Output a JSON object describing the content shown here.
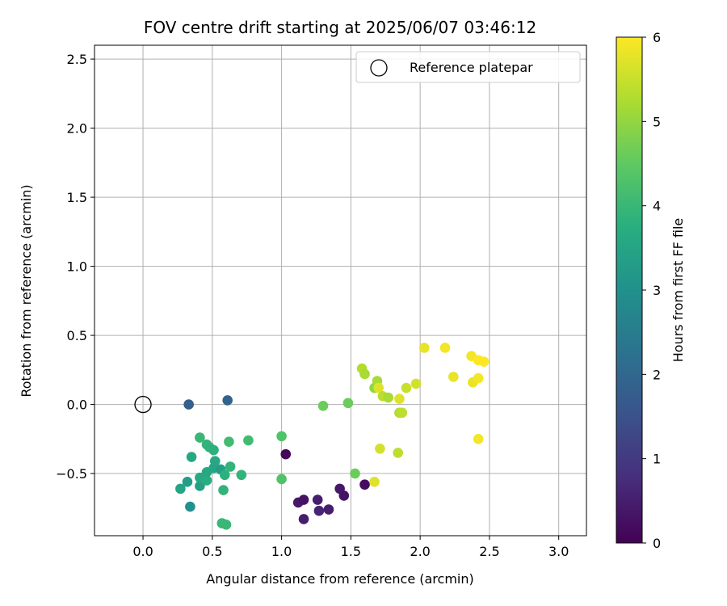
{
  "chart_data": {
    "type": "scatter",
    "title": "FOV centre drift starting at 2025/06/07 03:46:12",
    "xlabel": "Angular distance from reference (arcmin)",
    "ylabel": "Rotation from reference (arcmin)",
    "xlim": [
      -0.35,
      3.2
    ],
    "ylim": [
      -0.95,
      2.6
    ],
    "xticks": [
      0.0,
      0.5,
      1.0,
      1.5,
      2.0,
      2.5,
      3.0
    ],
    "xtick_labels": [
      "0.0",
      "0.5",
      "1.0",
      "1.5",
      "2.0",
      "2.5",
      "3.0"
    ],
    "yticks": [
      -0.5,
      0.0,
      0.5,
      1.0,
      1.5,
      2.0,
      2.5
    ],
    "ytick_labels": [
      "−0.5",
      "0.0",
      "0.5",
      "1.0",
      "1.5",
      "2.0",
      "2.5"
    ],
    "grid": true,
    "legend": {
      "position": "top-right",
      "entries": [
        "Reference platepar"
      ]
    },
    "reference": {
      "x": 0.0,
      "y": 0.0,
      "label": "Reference platepar"
    },
    "colorbar": {
      "label": "Hours from first FF file",
      "range": [
        0,
        6
      ],
      "ticks": [
        0,
        1,
        2,
        3,
        4,
        5,
        6
      ],
      "tick_labels": [
        "0",
        "1",
        "2",
        "3",
        "4",
        "5",
        "6"
      ],
      "colormap": "viridis"
    },
    "points": [
      {
        "x": 1.03,
        "y": -0.36,
        "t": 0.1
      },
      {
        "x": 1.12,
        "y": -0.71,
        "t": 0.4
      },
      {
        "x": 1.16,
        "y": -0.69,
        "t": 0.3
      },
      {
        "x": 1.16,
        "y": -0.83,
        "t": 0.5
      },
      {
        "x": 1.26,
        "y": -0.69,
        "t": 0.5
      },
      {
        "x": 1.27,
        "y": -0.77,
        "t": 0.6
      },
      {
        "x": 1.34,
        "y": -0.76,
        "t": 0.5
      },
      {
        "x": 1.42,
        "y": -0.61,
        "t": 0.4
      },
      {
        "x": 1.45,
        "y": -0.66,
        "t": 0.3
      },
      {
        "x": 1.6,
        "y": -0.58,
        "t": 0.2
      },
      {
        "x": 0.33,
        "y": 0.0,
        "t": 1.8
      },
      {
        "x": 0.61,
        "y": 0.03,
        "t": 1.9
      },
      {
        "x": 0.34,
        "y": -0.74,
        "t": 3.0
      },
      {
        "x": 0.32,
        "y": -0.56,
        "t": 3.3
      },
      {
        "x": 0.27,
        "y": -0.61,
        "t": 3.5
      },
      {
        "x": 0.41,
        "y": -0.59,
        "t": 3.4
      },
      {
        "x": 0.35,
        "y": -0.38,
        "t": 3.6
      },
      {
        "x": 0.41,
        "y": -0.53,
        "t": 3.6
      },
      {
        "x": 0.46,
        "y": -0.55,
        "t": 3.7
      },
      {
        "x": 0.46,
        "y": -0.49,
        "t": 3.6
      },
      {
        "x": 0.51,
        "y": -0.46,
        "t": 3.5
      },
      {
        "x": 0.52,
        "y": -0.41,
        "t": 3.6
      },
      {
        "x": 0.56,
        "y": -0.47,
        "t": 3.3
      },
      {
        "x": 0.59,
        "y": -0.51,
        "t": 3.8
      },
      {
        "x": 0.58,
        "y": -0.62,
        "t": 3.9
      },
      {
        "x": 0.63,
        "y": -0.45,
        "t": 3.9
      },
      {
        "x": 0.71,
        "y": -0.51,
        "t": 3.9
      },
      {
        "x": 0.41,
        "y": -0.24,
        "t": 4.0
      },
      {
        "x": 0.46,
        "y": -0.29,
        "t": 3.9
      },
      {
        "x": 0.48,
        "y": -0.31,
        "t": 3.9
      },
      {
        "x": 0.51,
        "y": -0.33,
        "t": 3.8
      },
      {
        "x": 0.62,
        "y": -0.27,
        "t": 4.1
      },
      {
        "x": 0.76,
        "y": -0.26,
        "t": 4.1
      },
      {
        "x": 0.57,
        "y": -0.86,
        "t": 4.0
      },
      {
        "x": 0.6,
        "y": -0.87,
        "t": 4.0
      },
      {
        "x": 1.0,
        "y": -0.23,
        "t": 4.3
      },
      {
        "x": 1.0,
        "y": -0.54,
        "t": 4.3
      },
      {
        "x": 1.3,
        "y": -0.01,
        "t": 4.6
      },
      {
        "x": 1.48,
        "y": 0.01,
        "t": 4.6
      },
      {
        "x": 1.53,
        "y": -0.5,
        "t": 4.6
      },
      {
        "x": 1.58,
        "y": 0.26,
        "t": 5.3
      },
      {
        "x": 1.6,
        "y": 0.22,
        "t": 5.2
      },
      {
        "x": 1.67,
        "y": 0.12,
        "t": 5.0
      },
      {
        "x": 1.69,
        "y": 0.17,
        "t": 5.2
      },
      {
        "x": 1.7,
        "y": 0.12,
        "t": 5.7
      },
      {
        "x": 1.73,
        "y": 0.06,
        "t": 5.4
      },
      {
        "x": 1.77,
        "y": 0.05,
        "t": 5.2
      },
      {
        "x": 1.67,
        "y": -0.56,
        "t": 5.7
      },
      {
        "x": 1.71,
        "y": -0.32,
        "t": 5.6
      },
      {
        "x": 1.84,
        "y": -0.35,
        "t": 5.4
      },
      {
        "x": 1.85,
        "y": -0.06,
        "t": 5.3
      },
      {
        "x": 1.87,
        "y": -0.06,
        "t": 5.4
      },
      {
        "x": 1.85,
        "y": 0.04,
        "t": 5.7
      },
      {
        "x": 1.9,
        "y": 0.12,
        "t": 5.5
      },
      {
        "x": 1.97,
        "y": 0.15,
        "t": 5.6
      },
      {
        "x": 2.03,
        "y": 0.41,
        "t": 5.8
      },
      {
        "x": 2.18,
        "y": 0.41,
        "t": 5.9
      },
      {
        "x": 2.24,
        "y": 0.2,
        "t": 5.8
      },
      {
        "x": 2.37,
        "y": 0.35,
        "t": 5.9
      },
      {
        "x": 2.38,
        "y": 0.16,
        "t": 5.8
      },
      {
        "x": 2.42,
        "y": 0.32,
        "t": 6.0
      },
      {
        "x": 2.42,
        "y": 0.19,
        "t": 5.9
      },
      {
        "x": 2.46,
        "y": 0.31,
        "t": 6.0
      },
      {
        "x": 2.42,
        "y": -0.25,
        "t": 5.9
      }
    ]
  }
}
